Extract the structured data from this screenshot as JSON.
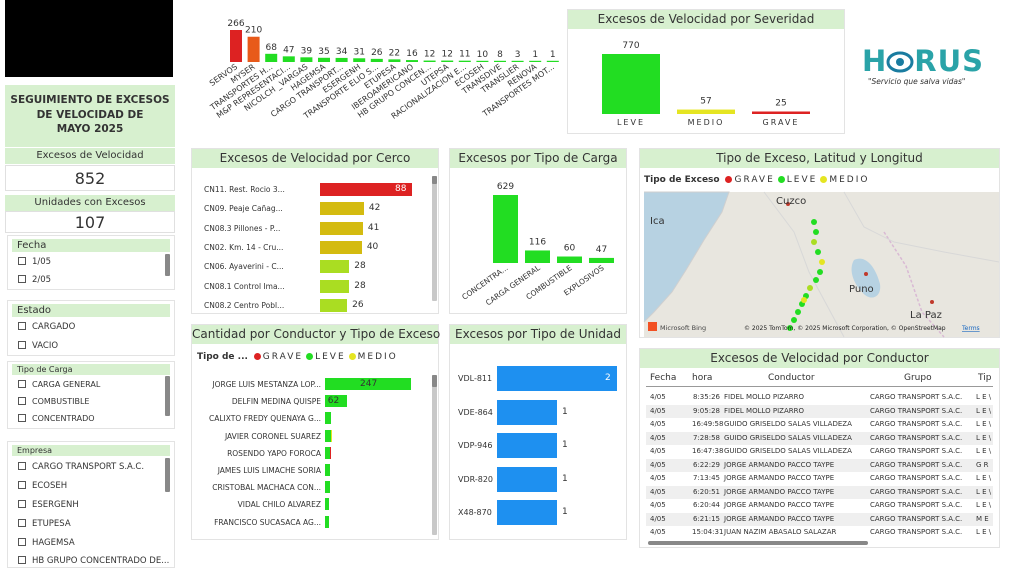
{
  "header": {
    "title_line1": "SEGUIMIENTO DE EXCESOS",
    "title_line2": "DE VELOCIDAD DE",
    "title_line3": "MAYO 2025"
  },
  "kpis": {
    "excesos_label": "Excesos de Velocidad",
    "excesos_value": "852",
    "unidades_label": "Unidades con Excesos",
    "unidades_value": "107"
  },
  "slicers": {
    "fecha": {
      "title": "Fecha",
      "items": [
        "1/05",
        "2/05"
      ]
    },
    "estado": {
      "title": "Estado",
      "items": [
        "CARGADO",
        "VACIO"
      ]
    },
    "tipo_carga": {
      "title": "Tipo de Carga",
      "items": [
        "CARGA GENERAL",
        "COMBUSTIBLE",
        "CONCENTRADO"
      ]
    },
    "empresa": {
      "title": "Empresa",
      "items": [
        "CARGO TRANSPORT S.A.C.",
        "ECOSEH",
        "ESERGENH",
        "ETUPESA",
        "HAGEMSA",
        "HB GRUPO CONCENTRADO DE..."
      ]
    }
  },
  "logo": {
    "text_left": "H",
    "text_right": "RUS",
    "tagline": "\"Servicio que salva vidas\""
  },
  "colors": {
    "grave": "#dd2222",
    "leve": "#22dd22",
    "medio": "#e5e522",
    "header_bg": "#d7f0cf",
    "blue": "#1e90f0"
  },
  "chart_data": [
    {
      "id": "empresas",
      "type": "bar",
      "categories": [
        "SERVOS",
        "MYSER",
        "TRANSPORTES H...",
        "M&P REPRESENTACI...",
        "NICOLCH _VARGAS",
        "HAGEMSA",
        "CARGO TRANSPORT...",
        "ESERGENH",
        "TRANSPORTE ELIO S...",
        "ETUPESA",
        "IBEROAMERICANO",
        "HB GRUPO CONCEN...",
        "UTEPSA",
        "RACIONALIZACION E...",
        "ECOSEH",
        "TRANSDIVE",
        "TRANSLIER",
        "RENOVA",
        "TRANSPORTES MOT..."
      ],
      "values": [
        266,
        210,
        68,
        47,
        39,
        35,
        34,
        31,
        26,
        22,
        16,
        12,
        12,
        11,
        10,
        8,
        3,
        1,
        1
      ],
      "colors": [
        "#dd2222",
        "#e85a1a",
        "#22dd22",
        "#22dd22",
        "#22dd22",
        "#22dd22",
        "#22dd22",
        "#22dd22",
        "#22dd22",
        "#22dd22",
        "#22dd22",
        "#22dd22",
        "#22dd22",
        "#22dd22",
        "#22dd22",
        "#22dd22",
        "#22dd22",
        "#22dd22",
        "#22dd22"
      ]
    },
    {
      "id": "severidad",
      "type": "bar",
      "title": "Excesos de Velocidad por Severidad",
      "categories": [
        "LEVE",
        "MEDIO",
        "GRAVE"
      ],
      "values": [
        770,
        57,
        25
      ],
      "colors": [
        "#22dd22",
        "#e5e522",
        "#dd2222"
      ]
    },
    {
      "id": "cerco",
      "type": "bar",
      "orientation": "horizontal",
      "title": "Excesos de Velocidad por Cerco",
      "categories": [
        "CN11. Rest. Rocio 3...",
        "CN09. Peaje Cañag...",
        "CN08.3 Pillones - P...",
        "CN02. Km. 14 - Cru...",
        "CN06. Ayaverini - C...",
        "CN08.1 Control Ima...",
        "CN08.2 Centro Pobl..."
      ],
      "values": [
        88,
        42,
        41,
        40,
        28,
        28,
        26
      ],
      "colors": [
        "#dd2222",
        "#d4bb10",
        "#d4bb10",
        "#d4bb10",
        "#aadd22",
        "#aadd22",
        "#aadd22"
      ]
    },
    {
      "id": "tipo_carga",
      "type": "bar",
      "title": "Excesos por Tipo de Carga",
      "categories": [
        "CONCENTRA...",
        "CARGA GENERAL",
        "COMBUSTIBLE",
        "EXPLOSIVOS"
      ],
      "values": [
        629,
        116,
        60,
        47
      ]
    },
    {
      "id": "mapa",
      "type": "map",
      "title": "Tipo de Exceso, Latitud y Longitud",
      "legend_title": "Tipo de Exceso",
      "legend": [
        "GRAVE",
        "LEVE",
        "MEDIO"
      ],
      "places": [
        "Cuzco",
        "Ica",
        "Puno",
        "La Paz"
      ],
      "attribution": "© 2025 TomTom, © 2025 Microsoft Corporation, © OpenStreetMap",
      "terms": "Terms",
      "brand": "Microsoft Bing"
    },
    {
      "id": "conductor",
      "type": "bar",
      "orientation": "horizontal",
      "stacked": true,
      "title": "Cantidad por Conductor y Tipo de Exceso",
      "legend_title": "Tipo de ...",
      "legend": [
        "GRAVE",
        "LEVE",
        "MEDIO"
      ],
      "categories": [
        "JORGE LUIS MESTANZA LOP...",
        "DELFIN MEDINA QUISPE",
        "CALIXTO FREDY QUENAYA G...",
        "JAVIER CORONEL SUAREZ",
        "ROSENDO YAPO FOROCA",
        "JAMES LUIS LIMACHE SORIA",
        "CRISTOBAL MACHACA CON...",
        "VIDAL CHILO ALVAREZ",
        "FRANCISCO SUCASACA AG..."
      ],
      "series": [
        {
          "name": "GRAVE",
          "values": [
            0,
            0,
            0,
            0,
            1,
            0,
            0,
            0,
            0
          ]
        },
        {
          "name": "LEVE",
          "values": [
            247,
            62,
            17,
            16,
            14,
            14,
            13,
            12,
            12
          ]
        },
        {
          "name": "MEDIO",
          "values": [
            0,
            0,
            0,
            1,
            0,
            0,
            0,
            0,
            0
          ]
        }
      ],
      "data_labels": [
        "247",
        "62",
        "",
        "",
        "",
        "",
        "",
        "",
        ""
      ]
    },
    {
      "id": "tipo_unidad",
      "type": "bar",
      "orientation": "horizontal",
      "title": "Excesos por Tipo de Unidad",
      "categories": [
        "VDL-811",
        "VDE-864",
        "VDP-946",
        "VDR-820",
        "X48-870"
      ],
      "values": [
        2,
        1,
        1,
        1,
        1
      ]
    }
  ],
  "table": {
    "title": "Excesos de Velocidad por Conductor",
    "columns": [
      "Fecha",
      "hora",
      "Conductor",
      "Grupo",
      "Tip"
    ],
    "rows": [
      [
        "4/05",
        "8:35:26",
        "FIDEL MOLLO PIZARRO",
        "CARGO TRANSPORT S.A.C.",
        "L E \\"
      ],
      [
        "4/05",
        "9:05:28",
        "FIDEL MOLLO PIZARRO",
        "CARGO TRANSPORT S.A.C.",
        "L E \\"
      ],
      [
        "4/05",
        "16:49:58",
        "GUIDO GRISELDO SALAS VILLADEZA",
        "CARGO TRANSPORT S.A.C.",
        "L E \\"
      ],
      [
        "4/05",
        "7:28:58",
        "GUIDO GRISELDO SALAS VILLADEZA",
        "CARGO TRANSPORT S.A.C.",
        "L E \\"
      ],
      [
        "4/05",
        "16:47:38",
        "GUIDO GRISELDO SALAS VILLADEZA",
        "CARGO TRANSPORT S.A.C.",
        "L E \\"
      ],
      [
        "4/05",
        "6:22:29",
        "JORGE ARMANDO PACCO TAYPE",
        "CARGO TRANSPORT S.A.C.",
        "G R"
      ],
      [
        "4/05",
        "7:13:45",
        "JORGE ARMANDO PACCO TAYPE",
        "CARGO TRANSPORT S.A.C.",
        "L E \\"
      ],
      [
        "4/05",
        "6:20:51",
        "JORGE ARMANDO PACCO TAYPE",
        "CARGO TRANSPORT S.A.C.",
        "L E \\"
      ],
      [
        "4/05",
        "6:20:44",
        "JORGE ARMANDO PACCO TAYPE",
        "CARGO TRANSPORT S.A.C.",
        "L E \\"
      ],
      [
        "4/05",
        "6:21:15",
        "JORGE ARMANDO PACCO TAYPE",
        "CARGO TRANSPORT S.A.C.",
        "M E"
      ],
      [
        "4/05",
        "15:04:31",
        "JUAN NAZIM ABASALO SALAZAR",
        "CARGO TRANSPORT S.A.C.",
        "L E \\"
      ]
    ]
  }
}
